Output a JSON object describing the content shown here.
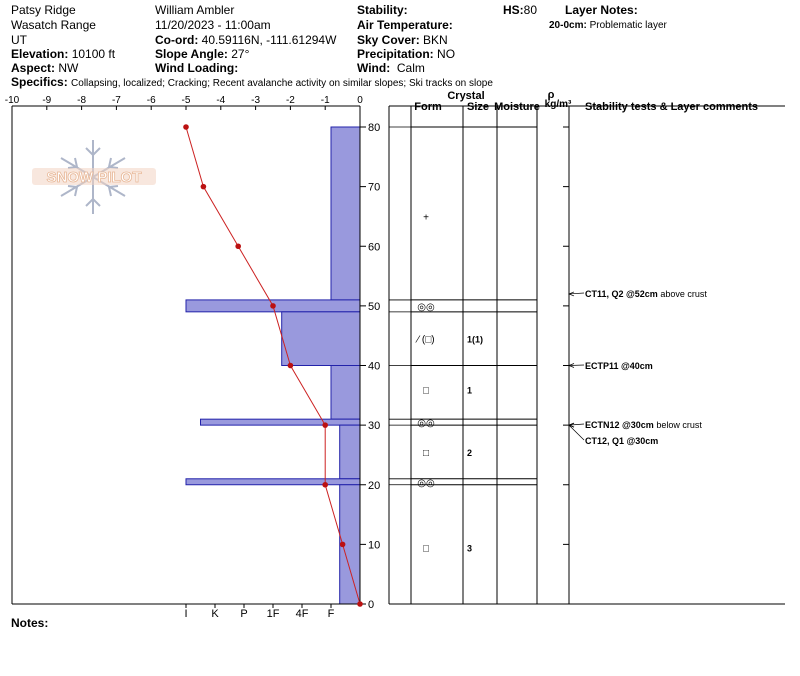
{
  "header": {
    "location": "Patsy Ridge",
    "range": "Wasatch Range",
    "state": "UT",
    "elevation_label": "Elevation:",
    "elevation": "10100 ft",
    "aspect_label": "Aspect:",
    "aspect": "NW",
    "observer": "William Ambler",
    "datetime": "11/20/2023 - 11:00am",
    "coord_label": "Co-ord:",
    "coord": "40.59116N, -111.61294W",
    "slope_label": "Slope Angle:",
    "slope": "27°",
    "wind_loading_label": "Wind Loading:",
    "stability_label": "Stability:",
    "air_temp_label": "Air Temperature:",
    "sky_label": "Sky Cover:",
    "sky": "BKN",
    "precip_label": "Precipitation:",
    "precip": "NO",
    "wind_label": "Wind:",
    "wind": "Calm",
    "hs_label": "HS:",
    "hs": "80",
    "layer_notes_label": "Layer Notes:",
    "layer_note_range": "20-0cm:",
    "layer_note_text": "Problematic layer",
    "specifics_label": "Specifics:",
    "specifics": "Collapsing, localized; Cracking; Recent avalanche activity on similar slopes; Ski tracks on slope",
    "notes_label": "Notes:"
  },
  "logo_text": "SNOW PILOT",
  "columns": {
    "crystal": "Crystal",
    "form": "Form",
    "size": "Size",
    "moisture": "Moisture",
    "rho": "ρ",
    "density_unit": "kg/m³",
    "comments": "Stability tests & Layer comments"
  },
  "chart_data": {
    "type": "snow-profile",
    "temperature_axis": {
      "min": -10,
      "max": 0,
      "ticks": [
        -10,
        -9,
        -8,
        -7,
        -6,
        -5,
        -4,
        -3,
        -2,
        -1,
        0
      ]
    },
    "depth_axis": {
      "min": 0,
      "max": 80,
      "ticks": [
        0,
        10,
        20,
        30,
        40,
        50,
        60,
        70,
        80
      ]
    },
    "hardness_labels": [
      "I",
      "K",
      "P",
      "1F",
      "4F",
      "F"
    ],
    "hardness_profile": [
      {
        "top": 80,
        "bottom": 51,
        "hardness": 1
      },
      {
        "top": 51,
        "bottom": 49,
        "hardness": 6
      },
      {
        "top": 49,
        "bottom": 40,
        "hardness": 2.7
      },
      {
        "top": 40,
        "bottom": 31,
        "hardness": 1
      },
      {
        "top": 31,
        "bottom": 30,
        "hardness": 5.5
      },
      {
        "top": 30,
        "bottom": 21,
        "hardness": 0.7
      },
      {
        "top": 21,
        "bottom": 20,
        "hardness": 6
      },
      {
        "top": 20,
        "bottom": 0,
        "hardness": 0.7
      }
    ],
    "temperature_profile": [
      {
        "depth": 80,
        "temp": -5
      },
      {
        "depth": 70,
        "temp": -4.5
      },
      {
        "depth": 60,
        "temp": -3.5
      },
      {
        "depth": 50,
        "temp": -2.5
      },
      {
        "depth": 40,
        "temp": -2
      },
      {
        "depth": 30,
        "temp": -1
      },
      {
        "depth": 20,
        "temp": -1
      },
      {
        "depth": 10,
        "temp": -0.5
      },
      {
        "depth": 0,
        "temp": 0
      }
    ],
    "layer_boundaries": [
      80,
      51,
      49,
      40,
      31,
      30,
      21,
      20,
      0
    ],
    "layer_annotations": [
      {
        "depth": 65,
        "form": "+",
        "size": ""
      },
      {
        "depth": 50,
        "form": "◎◎",
        "size": ""
      },
      {
        "depth": 44.5,
        "form": "⁄ (□)",
        "size": "1(1)"
      },
      {
        "depth": 36,
        "form": "□",
        "size": "1"
      },
      {
        "depth": 30.5,
        "form": "◎◎",
        "size": ""
      },
      {
        "depth": 25.5,
        "form": "□",
        "size": "2"
      },
      {
        "depth": 20.5,
        "form": "◎◎",
        "size": ""
      },
      {
        "depth": 9.5,
        "form": "□",
        "size": "3"
      }
    ],
    "stability_tests": [
      {
        "depth": 52,
        "bold": "CT11, Q2 @52cm",
        "text": " above crust"
      },
      {
        "depth": 40,
        "bold": "ECTP11 @40cm",
        "text": ""
      },
      {
        "depth": 30,
        "bold": "ECTN12 @30cm",
        "text": " below crust"
      },
      {
        "depth": 30,
        "bold": "CT12, Q1 @30cm",
        "text": ""
      }
    ]
  }
}
